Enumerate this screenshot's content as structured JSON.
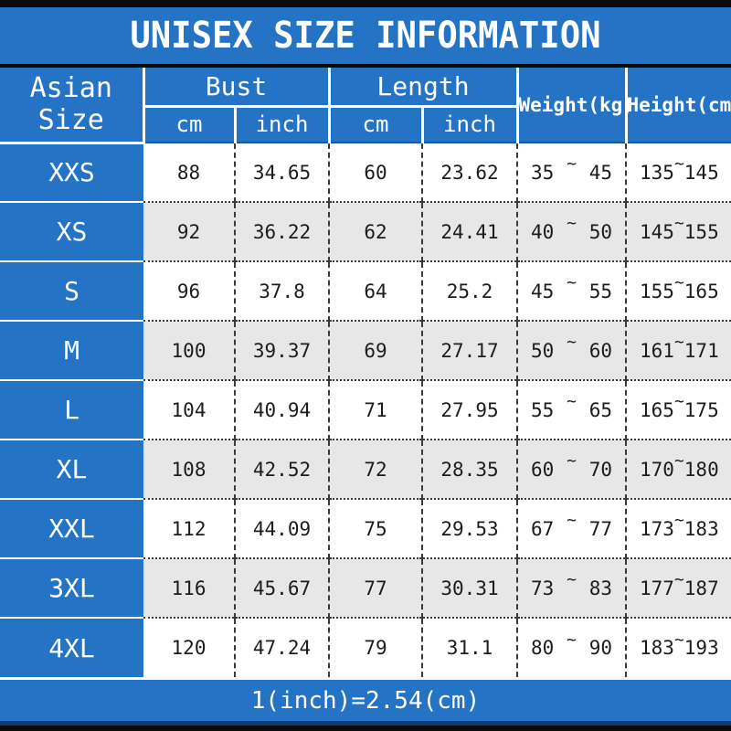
{
  "title": "UNISEX SIZE INFORMATION",
  "footer_note": "1(inch)=2.54(cm)",
  "colors": {
    "header_blue": "#2573C4",
    "alt_row_gray": "#E7E7E7",
    "row_white": "#FFFFFF",
    "bar_black": "#0B0B0B",
    "text_white": "#FFFFFF"
  },
  "table": {
    "corner_header": "Asian Size",
    "bust_header": "Bust",
    "length_header": "Length",
    "unit_cm": "cm",
    "unit_inch": "inch",
    "weight_header": "Weight(kg)",
    "height_header": "Height(cm)",
    "tilde": "~",
    "rows": [
      {
        "size": "XXS",
        "bust_cm": "88",
        "bust_inch": "34.65",
        "length_cm": "60",
        "length_inch": "23.62",
        "weight_min": "35",
        "weight_max": "45",
        "height_min": "135",
        "height_max": "145"
      },
      {
        "size": "XS",
        "bust_cm": "92",
        "bust_inch": "36.22",
        "length_cm": "62",
        "length_inch": "24.41",
        "weight_min": "40",
        "weight_max": "50",
        "height_min": "145",
        "height_max": "155"
      },
      {
        "size": "S",
        "bust_cm": "96",
        "bust_inch": "37.8",
        "length_cm": "64",
        "length_inch": "25.2",
        "weight_min": "45",
        "weight_max": "55",
        "height_min": "155",
        "height_max": "165"
      },
      {
        "size": "M",
        "bust_cm": "100",
        "bust_inch": "39.37",
        "length_cm": "69",
        "length_inch": "27.17",
        "weight_min": "50",
        "weight_max": "60",
        "height_min": "161",
        "height_max": "171"
      },
      {
        "size": "L",
        "bust_cm": "104",
        "bust_inch": "40.94",
        "length_cm": "71",
        "length_inch": "27.95",
        "weight_min": "55",
        "weight_max": "65",
        "height_min": "165",
        "height_max": "175"
      },
      {
        "size": "XL",
        "bust_cm": "108",
        "bust_inch": "42.52",
        "length_cm": "72",
        "length_inch": "28.35",
        "weight_min": "60",
        "weight_max": "70",
        "height_min": "170",
        "height_max": "180"
      },
      {
        "size": "XXL",
        "bust_cm": "112",
        "bust_inch": "44.09",
        "length_cm": "75",
        "length_inch": "29.53",
        "weight_min": "67",
        "weight_max": "77",
        "height_min": "173",
        "height_max": "183"
      },
      {
        "size": "3XL",
        "bust_cm": "116",
        "bust_inch": "45.67",
        "length_cm": "77",
        "length_inch": "30.31",
        "weight_min": "73",
        "weight_max": "83",
        "height_min": "177",
        "height_max": "187"
      },
      {
        "size": "4XL",
        "bust_cm": "120",
        "bust_inch": "47.24",
        "length_cm": "79",
        "length_inch": "31.1",
        "weight_min": "80",
        "weight_max": "90",
        "height_min": "183",
        "height_max": "193"
      }
    ]
  },
  "chart_data": {
    "type": "table",
    "title": "UNISEX SIZE INFORMATION",
    "columns": [
      "Asian Size",
      "Bust cm",
      "Bust inch",
      "Length cm",
      "Length inch",
      "Weight(kg)",
      "Height(cm)"
    ],
    "rows": [
      [
        "XXS",
        "88",
        "34.65",
        "60",
        "23.62",
        "35~45",
        "135~145"
      ],
      [
        "XS",
        "92",
        "36.22",
        "62",
        "24.41",
        "40~50",
        "145~155"
      ],
      [
        "S",
        "96",
        "37.8",
        "64",
        "25.2",
        "45~55",
        "155~165"
      ],
      [
        "M",
        "100",
        "39.37",
        "69",
        "27.17",
        "50~60",
        "161~171"
      ],
      [
        "L",
        "104",
        "40.94",
        "71",
        "27.95",
        "55~65",
        "165~175"
      ],
      [
        "XL",
        "108",
        "42.52",
        "72",
        "28.35",
        "60~70",
        "170~180"
      ],
      [
        "XXL",
        "112",
        "44.09",
        "75",
        "29.53",
        "67~77",
        "173~183"
      ],
      [
        "3XL",
        "116",
        "45.67",
        "77",
        "30.31",
        "73~83",
        "177~187"
      ],
      [
        "4XL",
        "120",
        "47.24",
        "79",
        "31.1",
        "80~90",
        "183~193"
      ]
    ],
    "note": "1(inch)=2.54(cm)"
  }
}
